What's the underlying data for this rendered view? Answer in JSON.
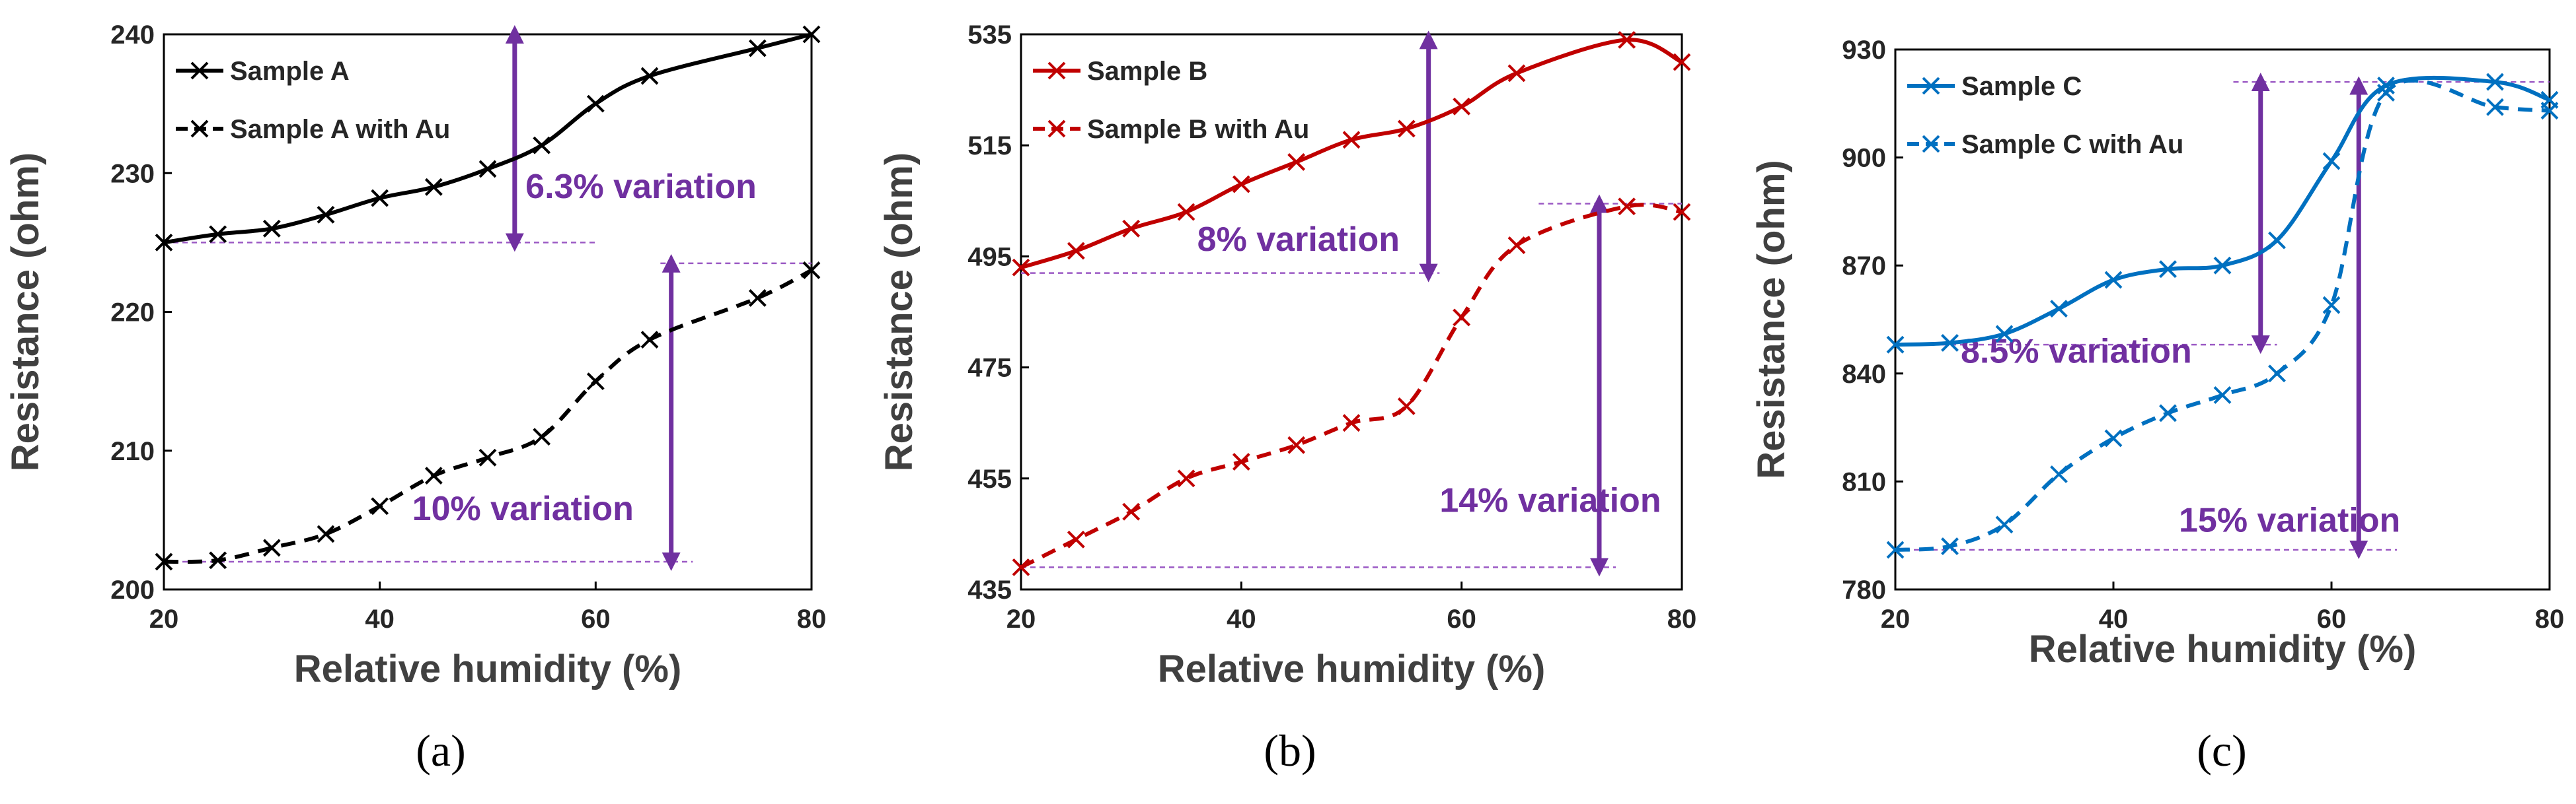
{
  "chart_data": [
    {
      "type": "line",
      "panel_label": "(a)",
      "xlabel": "Relative humidity (%)",
      "ylabel": "Resistance (ohm)",
      "xlim": [
        20,
        80
      ],
      "ylim": [
        200,
        240
      ],
      "xticks": [
        20,
        40,
        60,
        80
      ],
      "yticks": [
        200,
        210,
        220,
        230,
        240
      ],
      "legend_position": "top-left",
      "color": "#000000",
      "series": [
        {
          "name": "Sample A",
          "dashed": false,
          "x": [
            20,
            25,
            30,
            35,
            40,
            45,
            50,
            55,
            60,
            65,
            75,
            80
          ],
          "y": [
            225,
            225.6,
            226,
            227,
            228.2,
            229,
            230.3,
            232,
            235,
            237,
            239,
            240
          ]
        },
        {
          "name": "Sample A with Au",
          "dashed": true,
          "x": [
            20,
            25,
            30,
            35,
            40,
            45,
            50,
            55,
            60,
            65,
            75,
            80
          ],
          "y": [
            202,
            202.1,
            203,
            204,
            206,
            208.2,
            209.5,
            211,
            215,
            218,
            221,
            223
          ]
        }
      ],
      "annotations": [
        {
          "text": "6.3% variation",
          "arrow_x": 52.5,
          "from": 225,
          "to": 240,
          "guide_low": {
            "y": 225,
            "x1": 20,
            "x2": 60
          },
          "guide_high": null,
          "label_x": 53.5,
          "label_y": 228.2
        },
        {
          "text": "10% variation",
          "arrow_x": 67,
          "from": 202,
          "to": 223.5,
          "guide_low": {
            "y": 202,
            "x1": 20,
            "x2": 69
          },
          "guide_high": {
            "y": 223.5,
            "x1": 66,
            "x2": 80
          },
          "label_x": 43,
          "label_y": 205
        }
      ]
    },
    {
      "type": "line",
      "panel_label": "(b)",
      "xlabel": "Relative humidity (%)",
      "ylabel": "Resistance (ohm)",
      "xlim": [
        20,
        80
      ],
      "ylim": [
        435,
        535
      ],
      "xticks": [
        20,
        40,
        60,
        80
      ],
      "yticks": [
        435,
        455,
        475,
        495,
        515,
        535
      ],
      "legend_position": "top-left",
      "color": "#c00000",
      "series": [
        {
          "name": "Sample B",
          "dashed": false,
          "x": [
            20,
            25,
            30,
            35,
            40,
            45,
            50,
            55,
            60,
            65,
            75,
            80
          ],
          "y": [
            493,
            496,
            500,
            503,
            508,
            512,
            516,
            518,
            522,
            528,
            534,
            530
          ]
        },
        {
          "name": "Sample B with Au",
          "dashed": true,
          "x": [
            20,
            25,
            30,
            35,
            40,
            45,
            50,
            55,
            60,
            65,
            75,
            80
          ],
          "y": [
            439,
            444,
            449,
            455,
            458,
            461,
            465,
            468,
            484,
            497,
            504,
            503
          ]
        }
      ],
      "annotations": [
        {
          "text": "8% variation",
          "arrow_x": 57,
          "from": 492,
          "to": 534,
          "guide_low": {
            "y": 492,
            "x1": 20,
            "x2": 58
          },
          "guide_high": null,
          "label_x": 36,
          "label_y": 496
        },
        {
          "text": "14% variation",
          "arrow_x": 72.5,
          "from": 439,
          "to": 504.5,
          "guide_low": {
            "y": 439,
            "x1": 20,
            "x2": 74
          },
          "guide_high": {
            "y": 504.5,
            "x1": 67,
            "x2": 80
          },
          "label_x": 58,
          "label_y": 449
        }
      ]
    },
    {
      "type": "line",
      "panel_label": "(c)",
      "xlabel": "Relative humidity (%)",
      "ylabel": "Resistance (ohm)",
      "xlim": [
        20,
        80
      ],
      "ylim": [
        780,
        930
      ],
      "xticks": [
        20,
        40,
        60,
        80
      ],
      "yticks": [
        780,
        810,
        840,
        870,
        900,
        930
      ],
      "legend_position": "top-left",
      "color": "#0070c0",
      "series": [
        {
          "name": "Sample C",
          "dashed": false,
          "x": [
            20,
            25,
            30,
            35,
            40,
            45,
            50,
            55,
            60,
            65,
            75,
            80
          ],
          "y": [
            848,
            848.5,
            851,
            858,
            866,
            869,
            870,
            877,
            899,
            920,
            921,
            916
          ]
        },
        {
          "name": "Sample C with Au",
          "dashed": true,
          "x": [
            20,
            25,
            30,
            35,
            40,
            45,
            50,
            55,
            60,
            65,
            75,
            80
          ],
          "y": [
            791,
            792,
            798,
            812,
            822,
            829,
            834,
            840,
            859,
            918,
            914,
            913
          ]
        }
      ],
      "annotations": [
        {
          "text": "8.5% variation",
          "arrow_x": 53.5,
          "from": 848,
          "to": 921,
          "guide_low": {
            "y": 848,
            "x1": 20,
            "x2": 55
          },
          "guide_high": {
            "y": 921,
            "x1": 51,
            "x2": 80
          },
          "label_x": 26,
          "label_y": 843
        },
        {
          "text": "15% variation",
          "arrow_x": 62.5,
          "from": 791,
          "to": 920,
          "guide_low": {
            "y": 791,
            "x1": 20,
            "x2": 66
          },
          "guide_high": null,
          "label_x": 46,
          "label_y": 796
        }
      ]
    }
  ],
  "colors": {
    "annotation": "#7030a0",
    "guide": "#9b59c4"
  }
}
